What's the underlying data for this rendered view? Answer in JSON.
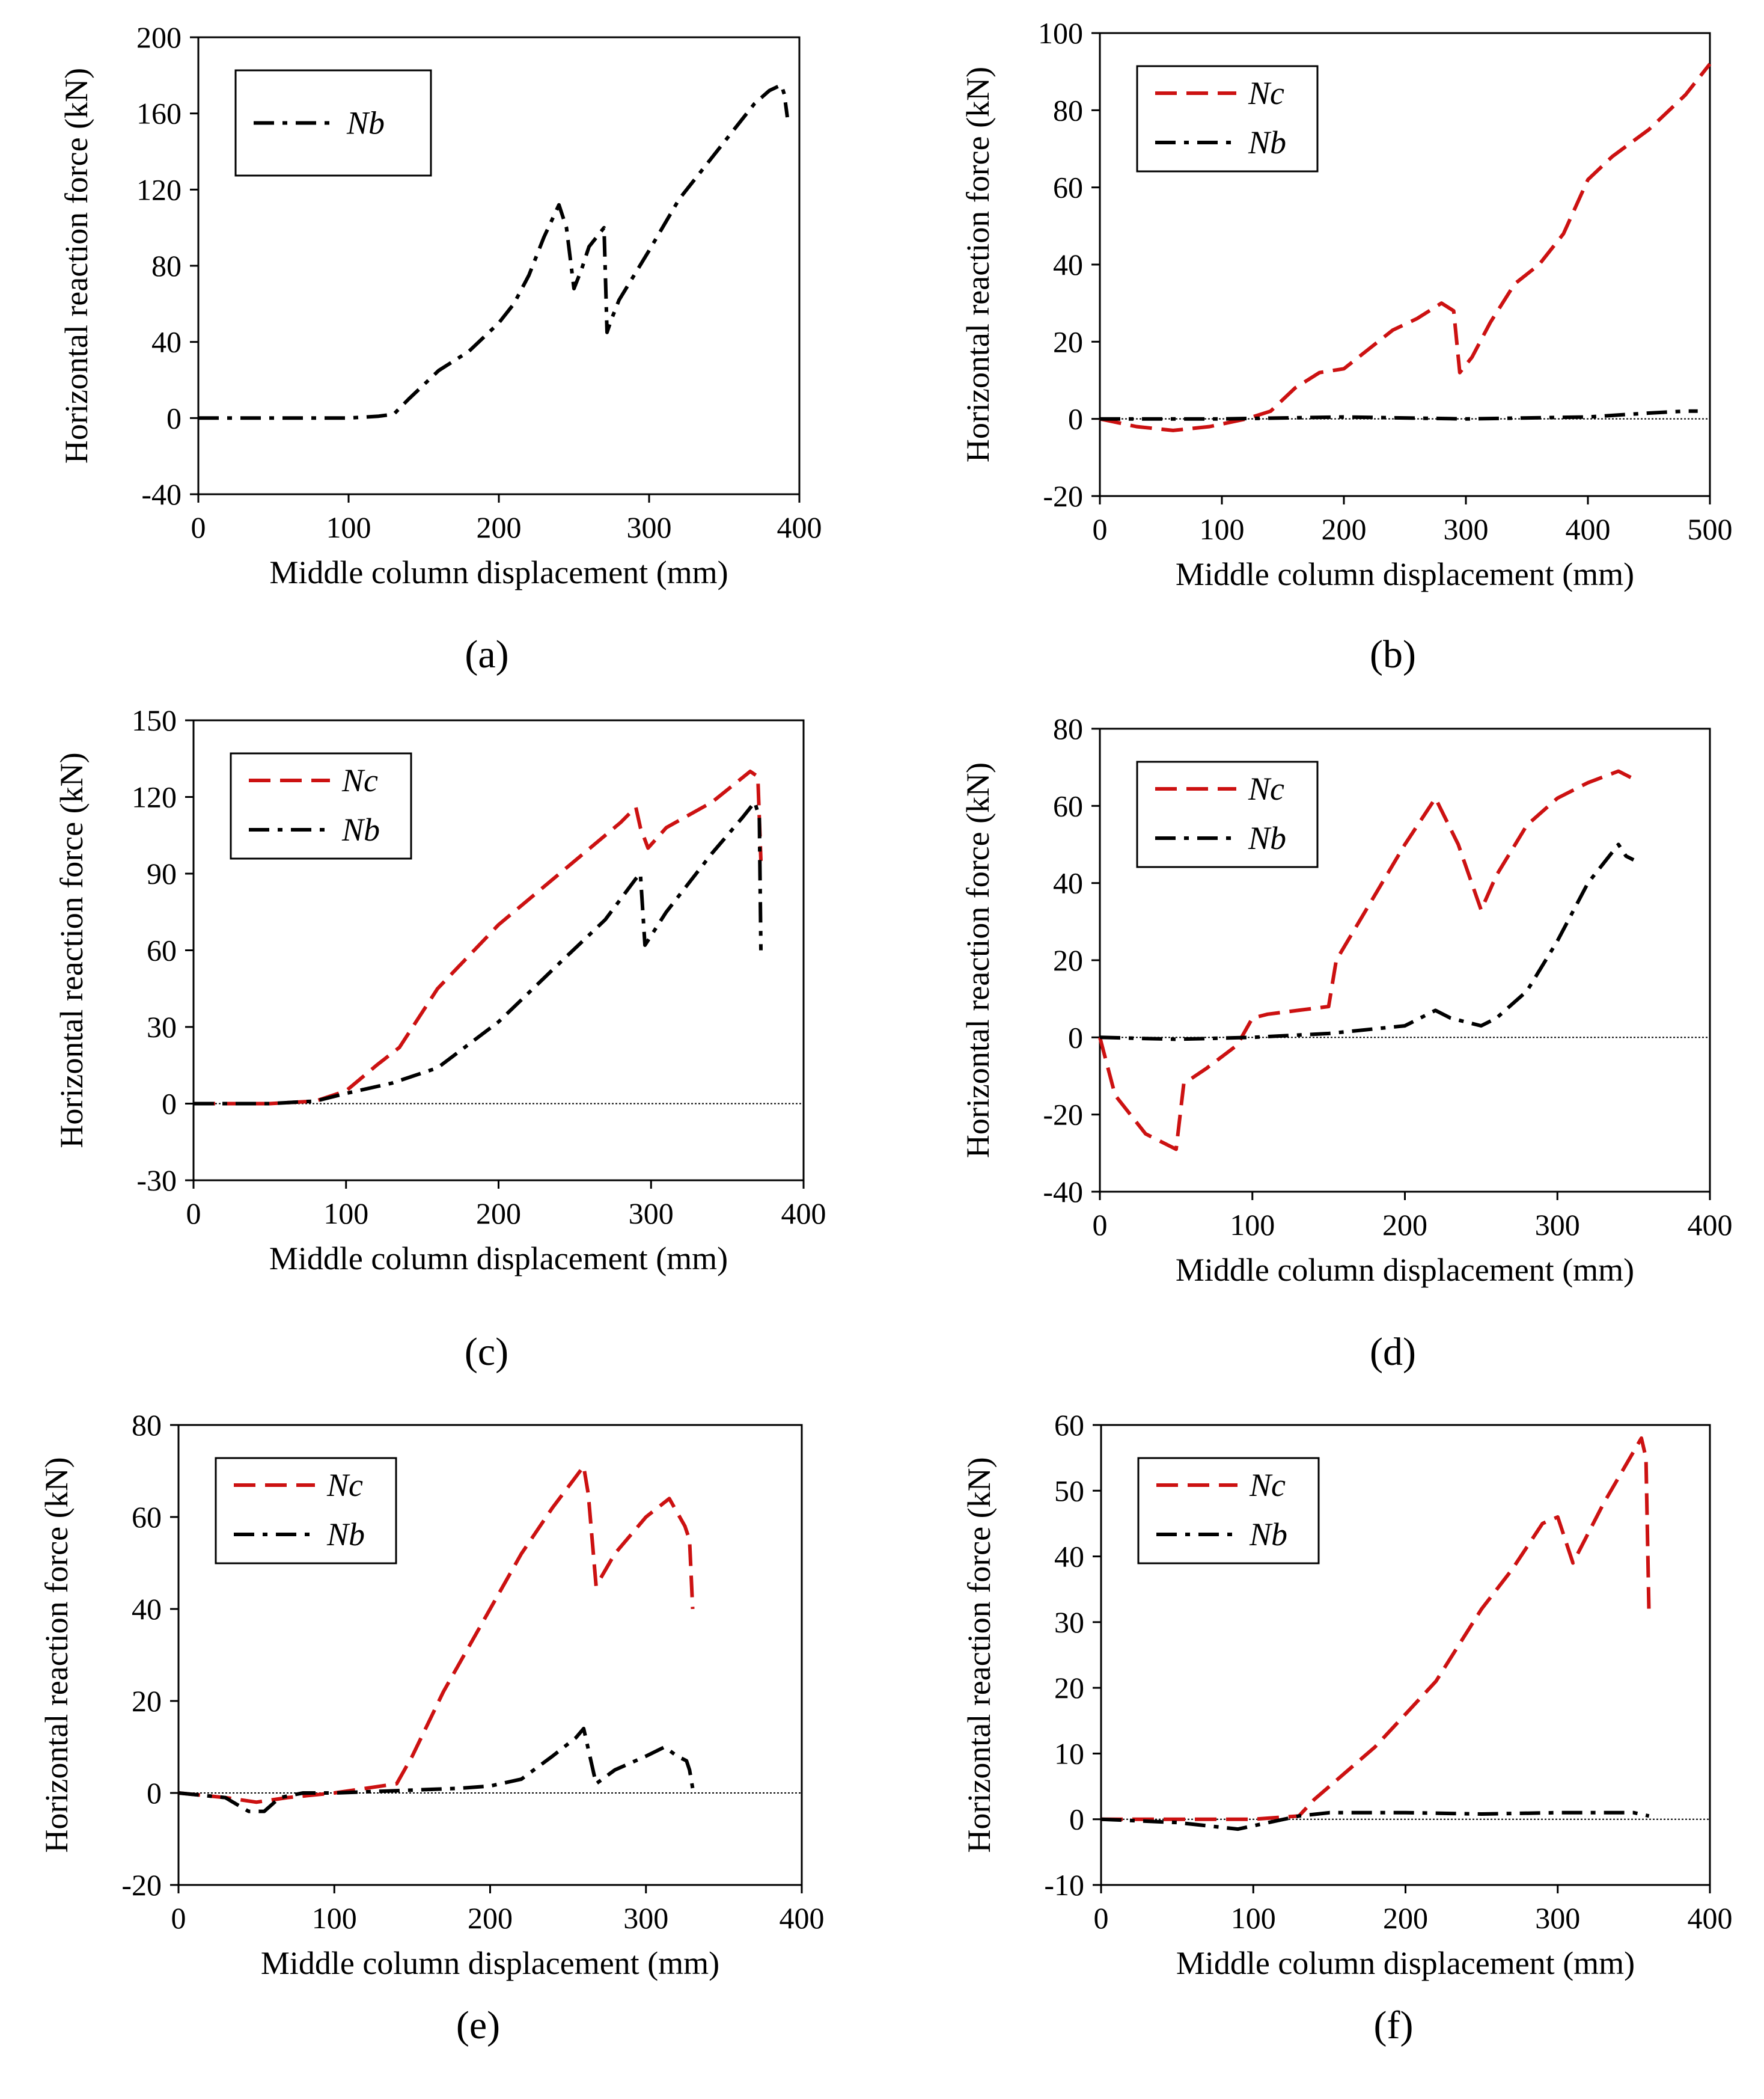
{
  "colors": {
    "Nc": "#cc1111",
    "Nb": "#000000",
    "axis": "#000000",
    "zero_line": "#000000"
  },
  "chart_data": [
    {
      "type": "line",
      "panel": "a",
      "caption": "(a)",
      "xlabel": "Middle column displacement (mm)",
      "ylabel": "Horizontal reaction force (kN)",
      "xlim": [
        0,
        400
      ],
      "xticks": [
        0,
        100,
        200,
        300,
        400
      ],
      "ylim": [
        -40,
        200
      ],
      "yticks": [
        -40,
        0,
        40,
        80,
        120,
        160,
        200
      ],
      "zero_line": false,
      "legend": {
        "position": "top-left",
        "boxed": true
      },
      "series": [
        {
          "name": "Nb",
          "style": "dashdot",
          "color": "#000000",
          "x": [
            0,
            50,
            100,
            120,
            130,
            140,
            160,
            180,
            200,
            210,
            220,
            230,
            240,
            245,
            250,
            255,
            260,
            265,
            270,
            272,
            275,
            280,
            300,
            320,
            340,
            360,
            370,
            380,
            388,
            390,
            392
          ],
          "y": [
            0,
            0,
            0,
            1,
            2,
            10,
            25,
            35,
            50,
            60,
            75,
            95,
            112,
            100,
            68,
            78,
            90,
            95,
            100,
            45,
            52,
            62,
            88,
            115,
            135,
            155,
            165,
            172,
            175,
            170,
            158
          ]
        }
      ]
    },
    {
      "type": "line",
      "panel": "b",
      "caption": "(b)",
      "xlabel": "Middle column displacement (mm)",
      "ylabel": "Horizontal reaction force (kN)",
      "xlim": [
        0,
        500
      ],
      "xticks": [
        0,
        100,
        200,
        300,
        400,
        500
      ],
      "ylim": [
        -20,
        100
      ],
      "yticks": [
        -20,
        0,
        20,
        40,
        60,
        80,
        100
      ],
      "zero_line": true,
      "legend": {
        "position": "top-left",
        "boxed": true
      },
      "series": [
        {
          "name": "Nc",
          "style": "dashed",
          "color": "#cc1111",
          "x": [
            0,
            30,
            60,
            90,
            120,
            140,
            160,
            180,
            200,
            220,
            240,
            260,
            280,
            290,
            295,
            305,
            320,
            340,
            360,
            380,
            400,
            420,
            450,
            480,
            500
          ],
          "y": [
            0,
            -2,
            -3,
            -2,
            0,
            2,
            8,
            12,
            13,
            18,
            23,
            26,
            30,
            28,
            12,
            16,
            25,
            35,
            40,
            48,
            62,
            68,
            75,
            84,
            92
          ]
        },
        {
          "name": "Nb",
          "style": "dashdot",
          "color": "#000000",
          "x": [
            0,
            100,
            200,
            300,
            400,
            450,
            480,
            490
          ],
          "y": [
            0,
            0,
            0.5,
            0,
            0.5,
            1.5,
            2,
            2
          ]
        }
      ]
    },
    {
      "type": "line",
      "panel": "c",
      "caption": "(c)",
      "xlabel": "Middle column displacement (mm)",
      "ylabel": "Horizontal reaction force (kN)",
      "xlim": [
        0,
        400
      ],
      "xticks": [
        0,
        100,
        200,
        300,
        400
      ],
      "ylim": [
        -30,
        150
      ],
      "yticks": [
        -30,
        0,
        30,
        60,
        90,
        120,
        150
      ],
      "zero_line": true,
      "legend": {
        "position": "top-left",
        "boxed": true
      },
      "series": [
        {
          "name": "Nc",
          "style": "dashed",
          "color": "#cc1111",
          "x": [
            0,
            50,
            80,
            100,
            120,
            135,
            160,
            200,
            240,
            280,
            290,
            293,
            298,
            310,
            340,
            365,
            370,
            372
          ],
          "y": [
            0,
            0,
            1,
            5,
            15,
            22,
            45,
            70,
            90,
            110,
            116,
            108,
            100,
            108,
            118,
            130,
            128,
            95
          ]
        },
        {
          "name": "Nb",
          "style": "dashdot",
          "color": "#000000",
          "x": [
            0,
            50,
            80,
            100,
            130,
            160,
            200,
            240,
            270,
            290,
            293,
            296,
            310,
            340,
            360,
            368,
            371,
            372
          ],
          "y": [
            0,
            0,
            1,
            4,
            8,
            14,
            32,
            55,
            72,
            88,
            90,
            62,
            75,
            98,
            112,
            118,
            112,
            60
          ]
        }
      ]
    },
    {
      "type": "line",
      "panel": "d",
      "caption": "(d)",
      "xlabel": "Middle column displacement (mm)",
      "ylabel": "Horizontal reaction force (kN)",
      "xlim": [
        0,
        400
      ],
      "xticks": [
        0,
        100,
        200,
        300,
        400
      ],
      "ylim": [
        -40,
        80
      ],
      "yticks": [
        -40,
        -20,
        0,
        20,
        40,
        60,
        80
      ],
      "zero_line": true,
      "legend": {
        "position": "top-left",
        "boxed": true
      },
      "series": [
        {
          "name": "Nc",
          "style": "dashed",
          "color": "#cc1111",
          "x": [
            0,
            10,
            30,
            50,
            55,
            70,
            90,
            100,
            110,
            130,
            150,
            155,
            170,
            200,
            220,
            235,
            250,
            260,
            280,
            300,
            320,
            340,
            345,
            350
          ],
          "y": [
            0,
            -15,
            -25,
            -29,
            -12,
            -8,
            -2,
            5,
            6,
            7,
            8,
            20,
            30,
            50,
            62,
            50,
            33,
            42,
            55,
            62,
            66,
            69,
            68,
            67
          ]
        },
        {
          "name": "Nb",
          "style": "dashdot",
          "color": "#000000",
          "x": [
            0,
            50,
            100,
            150,
            200,
            220,
            230,
            250,
            260,
            280,
            300,
            320,
            340,
            345,
            350
          ],
          "y": [
            0,
            -0.5,
            0,
            1,
            3,
            7,
            5,
            3,
            5,
            12,
            25,
            40,
            50,
            47,
            46
          ]
        }
      ]
    },
    {
      "type": "line",
      "panel": "e",
      "caption": "(e)",
      "xlabel": "Middle column displacement (mm)",
      "ylabel": "Horizontal reaction force (kN)",
      "xlim": [
        0,
        400
      ],
      "xticks": [
        0,
        100,
        200,
        300,
        400
      ],
      "ylim": [
        -20,
        80
      ],
      "yticks": [
        -20,
        0,
        20,
        40,
        60,
        80
      ],
      "zero_line": true,
      "legend": {
        "position": "top-left",
        "boxed": true
      },
      "series": [
        {
          "name": "Nc",
          "style": "dashed",
          "color": "#cc1111",
          "x": [
            0,
            30,
            50,
            70,
            100,
            140,
            150,
            170,
            200,
            220,
            240,
            260,
            263,
            268,
            280,
            300,
            315,
            325,
            328,
            330
          ],
          "y": [
            0,
            -1,
            -2,
            -1,
            0,
            2,
            8,
            22,
            40,
            52,
            62,
            71,
            65,
            45,
            52,
            60,
            64,
            58,
            55,
            40
          ]
        },
        {
          "name": "Nb",
          "style": "dashdot",
          "color": "#000000",
          "x": [
            0,
            30,
            45,
            55,
            65,
            80,
            100,
            140,
            180,
            200,
            220,
            240,
            255,
            260,
            268,
            280,
            300,
            312,
            320,
            326,
            328,
            330
          ],
          "y": [
            0,
            -1,
            -4,
            -4,
            -1,
            0,
            0,
            0.5,
            1,
            1.5,
            3,
            8,
            12,
            14,
            2,
            5,
            8,
            10,
            8,
            7,
            5,
            1
          ]
        }
      ]
    },
    {
      "type": "line",
      "panel": "f",
      "caption": "(f)",
      "xlabel": "Middle column displacement (mm)",
      "ylabel": "Horizontal reaction force (kN)",
      "xlim": [
        0,
        400
      ],
      "xticks": [
        0,
        100,
        200,
        300,
        400
      ],
      "ylim": [
        -10,
        60
      ],
      "yticks": [
        -10,
        0,
        10,
        20,
        30,
        40,
        50,
        60
      ],
      "zero_line": true,
      "legend": {
        "position": "top-left",
        "boxed": true
      },
      "series": [
        {
          "name": "Nc",
          "style": "dashed",
          "color": "#cc1111",
          "x": [
            0,
            50,
            100,
            130,
            140,
            160,
            180,
            200,
            220,
            250,
            270,
            290,
            300,
            310,
            330,
            350,
            355,
            358,
            360
          ],
          "y": [
            0,
            0,
            0,
            0.5,
            3,
            7,
            11,
            16,
            21,
            32,
            38,
            45,
            46,
            39,
            48,
            56,
            58,
            55,
            31
          ]
        },
        {
          "name": "Nb",
          "style": "dashdot",
          "color": "#000000",
          "x": [
            0,
            50,
            90,
            110,
            130,
            150,
            200,
            250,
            300,
            350,
            360
          ],
          "y": [
            0,
            -0.5,
            -1.5,
            -0.5,
            0.5,
            1,
            1,
            0.8,
            1,
            1,
            0.5
          ]
        }
      ]
    }
  ]
}
